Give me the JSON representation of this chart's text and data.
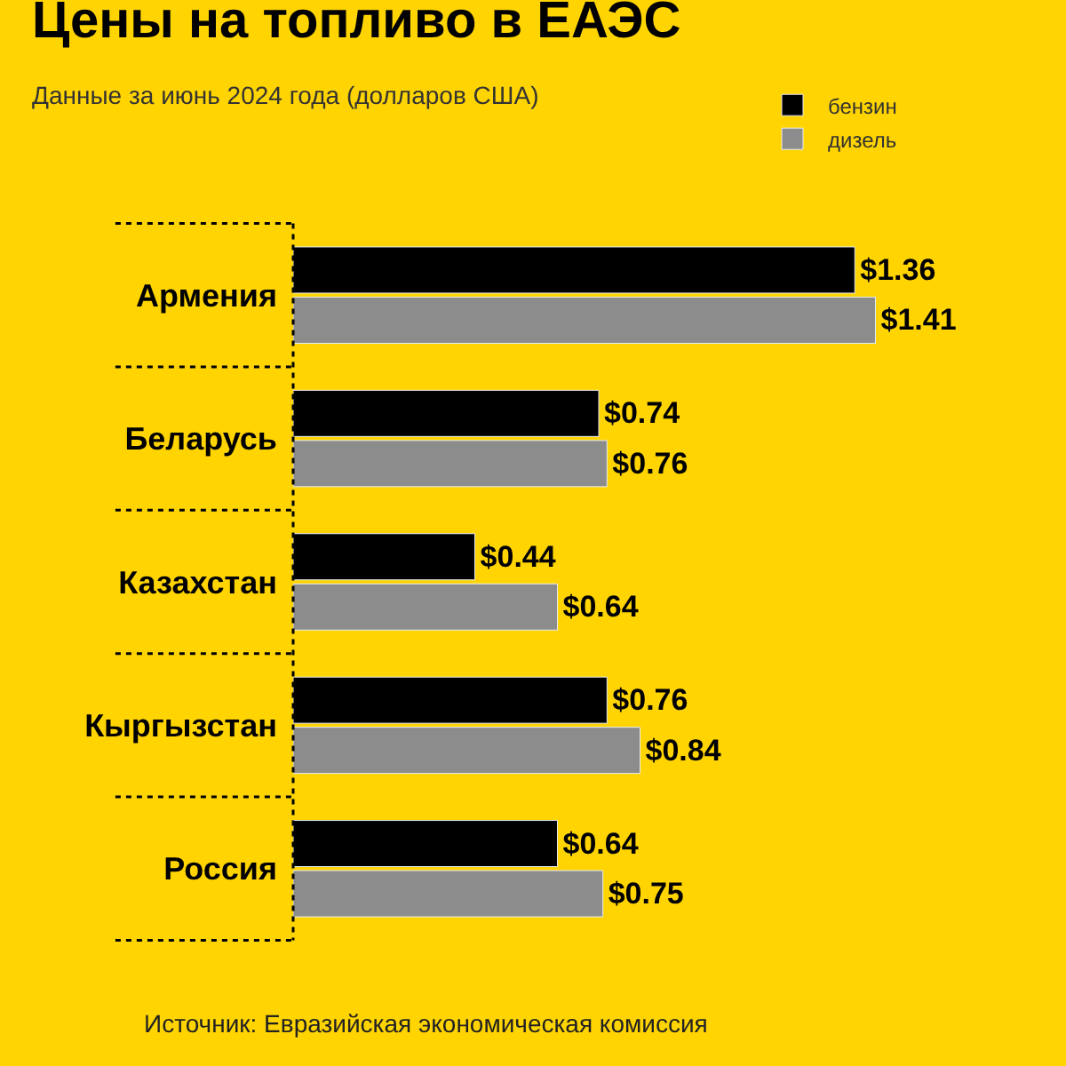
{
  "chart_data": {
    "type": "bar",
    "orientation": "horizontal",
    "title": "Цены на топливо в ЕАЭС",
    "subtitle": "Данные за июнь 2024 года (долларов США)",
    "categories": [
      "Армения",
      "Беларусь",
      "Казахстан",
      "Кыргызстан",
      "Россия"
    ],
    "series": [
      {
        "name": "бензин",
        "color": "#000000",
        "values": [
          1.36,
          0.74,
          0.44,
          0.76,
          0.64
        ],
        "value_labels": [
          "$1.36",
          "$0.74",
          "$0.44",
          "$0.76",
          "$0.64"
        ]
      },
      {
        "name": "дизель",
        "color": "#8c8c8c",
        "values": [
          1.41,
          0.76,
          0.64,
          0.84,
          0.75
        ],
        "value_labels": [
          "$1.41",
          "$0.76",
          "$0.64",
          "$0.84",
          "$0.75"
        ]
      }
    ],
    "tick_labels": "y",
    "grid": false,
    "legend": "top right",
    "annotations": [
      "Источник: Евразийская экономическая комиссия"
    ]
  }
}
